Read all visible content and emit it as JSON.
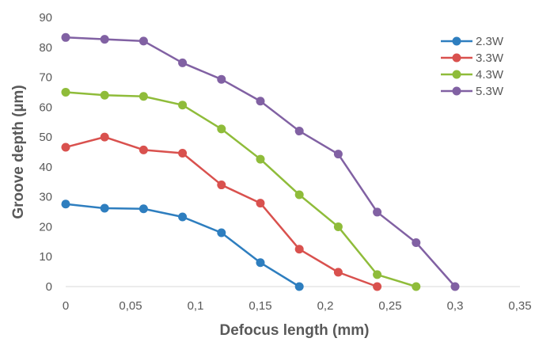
{
  "chart_data": {
    "type": "line",
    "xlabel": "Defocus length (mm)",
    "ylabel": "Groove depth (µm)",
    "xlim": [
      0,
      0.35
    ],
    "ylim": [
      0,
      90
    ],
    "x_ticks": [
      "0",
      "0,05",
      "0,1",
      "0,15",
      "0,2",
      "0,25",
      "0,3",
      "0,35"
    ],
    "y_ticks": [
      "0",
      "10",
      "20",
      "30",
      "40",
      "50",
      "60",
      "70",
      "80",
      "90"
    ],
    "grid": false,
    "legend_position": "top-right",
    "series": [
      {
        "name": "2.3W",
        "color": "#2e7ebf",
        "x": [
          0,
          0.03,
          0.06,
          0.09,
          0.12,
          0.15,
          0.18
        ],
        "y": [
          27.6,
          26.2,
          26.0,
          23.3,
          18.0,
          8.0,
          0
        ]
      },
      {
        "name": "3.3W",
        "color": "#d9514e",
        "x": [
          0,
          0.03,
          0.06,
          0.09,
          0.12,
          0.15,
          0.18,
          0.21,
          0.24
        ],
        "y": [
          46.6,
          50.0,
          45.7,
          44.6,
          34.0,
          27.9,
          12.5,
          4.8,
          0
        ]
      },
      {
        "name": "4.3W",
        "color": "#8fbc3a",
        "x": [
          0,
          0.03,
          0.06,
          0.09,
          0.12,
          0.15,
          0.18,
          0.21,
          0.24,
          0.27
        ],
        "y": [
          65.0,
          64.0,
          63.6,
          60.7,
          52.7,
          42.6,
          30.7,
          20.0,
          4.0,
          0
        ]
      },
      {
        "name": "5.3W",
        "color": "#8161a3",
        "x": [
          0,
          0.03,
          0.06,
          0.09,
          0.12,
          0.15,
          0.18,
          0.21,
          0.24,
          0.27,
          0.3
        ],
        "y": [
          83.3,
          82.7,
          82.1,
          74.8,
          69.3,
          62.0,
          52.0,
          44.3,
          24.9,
          14.7,
          0
        ]
      }
    ]
  }
}
